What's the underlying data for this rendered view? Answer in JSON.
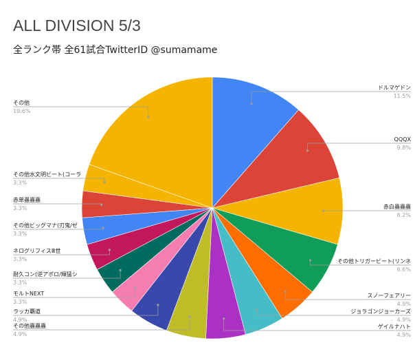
{
  "chart_data": {
    "type": "pie",
    "title": "ALL DIVISION 5/3",
    "subtitle": "全ランク帯 全61試合TwitterID @sumamame",
    "slices": [
      {
        "label": "ドルマゲドン",
        "pct_label": "11.5%",
        "value": 11.5,
        "color": "#4285F4"
      },
      {
        "label": "QQQX",
        "pct_label": "9.8%",
        "value": 9.8,
        "color": "#DB4437"
      },
      {
        "label": "赤白蟲蟲蟲",
        "pct_label": "8.2%",
        "value": 8.2,
        "color": "#F4B400"
      },
      {
        "label": "その他トリガービート(リンネ",
        "pct_label": "6.6%",
        "value": 6.6,
        "color": "#0F9D58"
      },
      {
        "label": "スノーフェアリー",
        "pct_label": "4.9%",
        "value": 4.9,
        "color": "#FF6D01"
      },
      {
        "label": "ジョラゴンジョーカーズ",
        "pct_label": "4.9%",
        "value": 4.9,
        "color": "#46BDC6"
      },
      {
        "label": "ゲイルナハト",
        "pct_label": "4.9%",
        "value": 4.9,
        "color": "#AB30C4"
      },
      {
        "label": "その他蟲蟲蟲",
        "pct_label": "4.9%",
        "value": 4.9,
        "color": "#C0BC28"
      },
      {
        "label": "ラッカ覇道",
        "pct_label": "4.9%",
        "value": 4.9,
        "color": "#3949AB"
      },
      {
        "label": "モルトNEXT",
        "pct_label": "3.3%",
        "value": 3.3,
        "color": "#F67DB1"
      },
      {
        "label": "耐久コン(逆アポロ/輝猛シ",
        "pct_label": "3.3%",
        "value": 3.3,
        "color": "#006B5E"
      },
      {
        "label": "ネログリフィスⅢ世",
        "pct_label": "3.3%",
        "value": 3.3,
        "color": "#C2185B"
      },
      {
        "label": "その他ビッグマナ(刃鬼/ゼ",
        "pct_label": "3.3%",
        "value": 3.3,
        "color": "#4285F4"
      },
      {
        "label": "赤単蟲蟲蟲",
        "pct_label": "3.3%",
        "value": 3.3,
        "color": "#DB4437"
      },
      {
        "label": "その他水文明ビート(コーラ",
        "pct_label": "3.3%",
        "value": 3.3,
        "color": "#F4B400"
      },
      {
        "label": "その他",
        "pct_label": "19.6%",
        "value": 19.6,
        "color": "#F4B400"
      }
    ]
  }
}
